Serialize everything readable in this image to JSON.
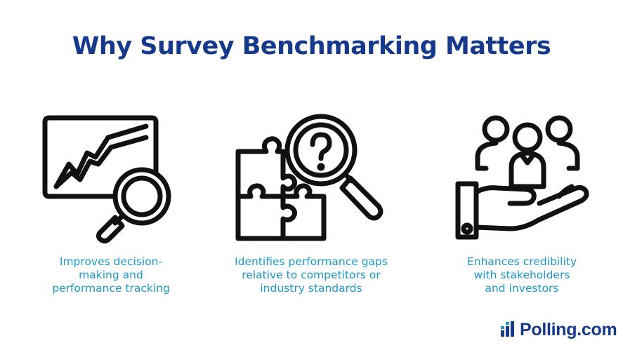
{
  "title": "Why Survey Benchmarking Matters",
  "colors": {
    "title": "#17398b",
    "caption": "#1a98c9",
    "icon_stroke": "#111111",
    "brand": "#17398b"
  },
  "items": [
    {
      "icon": "chart-magnifier-icon",
      "lines": [
        "Improves decision-",
        "making and",
        "performance tracking"
      ]
    },
    {
      "icon": "puzzle-question-magnifier-icon",
      "lines": [
        "Identifies performance gaps",
        "relative to competitors or",
        "industry standards"
      ]
    },
    {
      "icon": "hand-people-icon",
      "lines": [
        "Enhances credibility",
        "with stakeholders",
        "and investors"
      ]
    }
  ],
  "brand": {
    "name": "Polling.com",
    "icon": "polling-logo-icon"
  }
}
